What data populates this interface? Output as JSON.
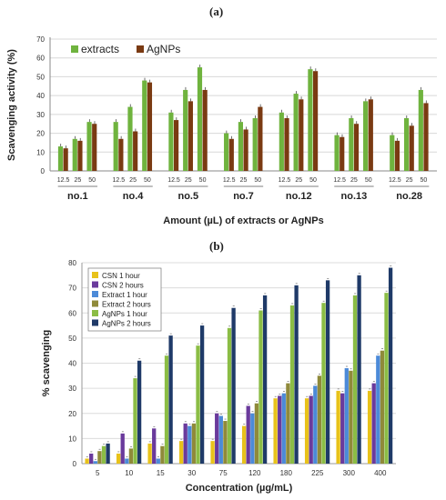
{
  "chart_data": [
    {
      "panel_label": "(a)",
      "type": "bar",
      "ylabel": "Scavenging activity (%)",
      "xlabel": "Amount (µL) of extracts or AgNPs",
      "ylim": [
        0,
        70
      ],
      "yticks": [
        0,
        10,
        20,
        30,
        40,
        50,
        60,
        70
      ],
      "grid": true,
      "legend_position": "top-left",
      "groups": [
        "no.1",
        "no.4",
        "no.5",
        "no.7",
        "no.12",
        "no.13",
        "no.28"
      ],
      "doses": [
        "12.5",
        "25",
        "50"
      ],
      "series": [
        {
          "name": "extracts",
          "color": "#6fb33e",
          "values": [
            [
              13,
              17,
              26
            ],
            [
              26,
              34,
              48
            ],
            [
              31,
              43,
              55
            ],
            [
              20,
              26,
              28
            ],
            [
              31,
              41,
              54
            ],
            [
              19,
              28,
              37
            ],
            [
              19,
              28,
              43
            ]
          ]
        },
        {
          "name": "AgNPs",
          "color": "#7a3a12",
          "values": [
            [
              12,
              16,
              25
            ],
            [
              17,
              21,
              47
            ],
            [
              27,
              37,
              43
            ],
            [
              17,
              22,
              34
            ],
            [
              28,
              38,
              53
            ],
            [
              18,
              25,
              38
            ],
            [
              16,
              24,
              36
            ]
          ]
        }
      ]
    },
    {
      "panel_label": "(b)",
      "type": "bar",
      "ylabel": "% scavenging",
      "xlabel": "Concentration (µg/mL)",
      "ylim": [
        0,
        80
      ],
      "yticks": [
        0,
        10,
        20,
        30,
        40,
        50,
        60,
        70,
        80
      ],
      "grid": true,
      "legend_position": "top-left",
      "categories": [
        "5",
        "10",
        "15",
        "30",
        "75",
        "120",
        "180",
        "225",
        "300",
        "400"
      ],
      "series": [
        {
          "name": "CSN 1 hour",
          "color": "#e8c21a",
          "values": [
            2,
            4,
            8,
            9,
            9,
            15,
            26,
            26,
            29,
            29
          ]
        },
        {
          "name": "CSN 2 hours",
          "color": "#6a3a9c",
          "values": [
            4,
            12,
            14,
            16,
            20,
            23,
            27,
            27,
            28,
            32
          ]
        },
        {
          "name": "Extract 1 hour",
          "color": "#4c8ad8",
          "values": [
            1,
            2,
            2,
            15,
            19,
            20,
            28,
            31,
            38,
            43
          ]
        },
        {
          "name": "Extract 2 hours",
          "color": "#8f8a3a",
          "values": [
            5,
            6,
            7,
            16,
            17,
            24,
            32,
            35,
            37,
            45
          ]
        },
        {
          "name": "AgNPs 1 hour",
          "color": "#8bbd45",
          "values": [
            7,
            34,
            43,
            47,
            54,
            61,
            63,
            64,
            67,
            68
          ]
        },
        {
          "name": "AgNPs 2 hours",
          "color": "#1f3a68",
          "values": [
            8,
            41,
            51,
            55,
            62,
            67,
            71,
            73,
            75,
            78
          ]
        }
      ]
    }
  ]
}
